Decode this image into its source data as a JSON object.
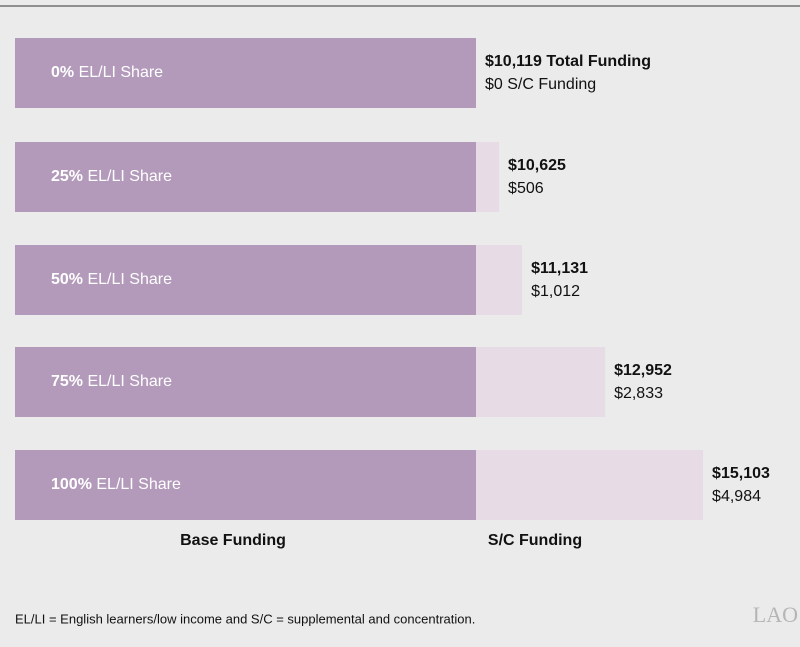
{
  "chart_data": {
    "type": "stacked-barh",
    "categories": [
      "0%",
      "25%",
      "50%",
      "75%",
      "100%"
    ],
    "category_suffix": "EL/LI Share",
    "series": [
      {
        "name": "Base Funding",
        "color": "#b39abb",
        "values": [
          10119,
          10119,
          10119,
          10119,
          10119
        ]
      },
      {
        "name": "S/C Funding",
        "color": "#e7dce6",
        "values": [
          0,
          506,
          1012,
          2833,
          4984
        ],
        "value_labels": [
          "$0 S/C Funding",
          "$506",
          "$1,012",
          "$2,833",
          "$4,984"
        ]
      }
    ],
    "total_labels": [
      "$10,119 Total Funding",
      "$10,625",
      "$11,131",
      "$12,952",
      "$15,103"
    ],
    "xlim": [
      0,
      17000
    ],
    "footnote": "EL/LI = English learners/low income and S/C = supplemental and concentration.",
    "logo": "LAO"
  }
}
